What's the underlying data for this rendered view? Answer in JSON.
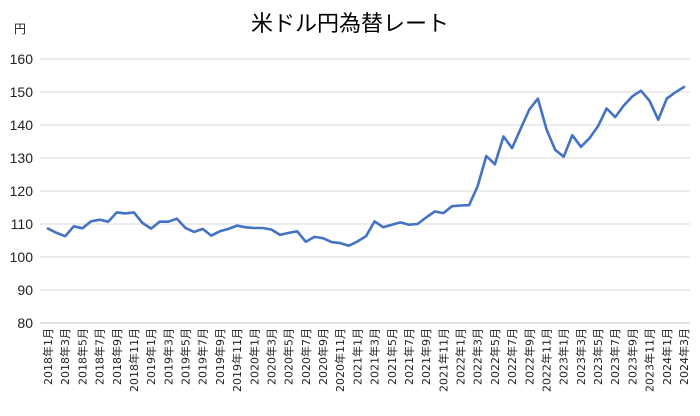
{
  "chart_data": {
    "type": "line",
    "title": "米ドル円為替レート",
    "ylabel": "円",
    "xlabel": "",
    "ylim": [
      80,
      160
    ],
    "yticks": [
      80,
      90,
      100,
      110,
      120,
      130,
      140,
      150,
      160
    ],
    "grid": true,
    "legend": "none",
    "color": "#4472C4",
    "x": [
      "2018年1月",
      "2018年2月",
      "2018年3月",
      "2018年4月",
      "2018年5月",
      "2018年6月",
      "2018年7月",
      "2018年8月",
      "2018年9月",
      "2018年10月",
      "2018年11月",
      "2018年12月",
      "2019年1月",
      "2019年2月",
      "2019年3月",
      "2019年4月",
      "2019年5月",
      "2019年6月",
      "2019年7月",
      "2019年8月",
      "2019年9月",
      "2019年10月",
      "2019年11月",
      "2019年12月",
      "2020年1月",
      "2020年2月",
      "2020年3月",
      "2020年4月",
      "2020年5月",
      "2020年6月",
      "2020年7月",
      "2020年8月",
      "2020年9月",
      "2020年10月",
      "2020年11月",
      "2020年12月",
      "2021年1月",
      "2021年2月",
      "2021年3月",
      "2021年4月",
      "2021年5月",
      "2021年6月",
      "2021年7月",
      "2021年8月",
      "2021年9月",
      "2021年10月",
      "2021年11月",
      "2021年12月",
      "2022年1月",
      "2022年2月",
      "2022年3月",
      "2022年4月",
      "2022年5月",
      "2022年6月",
      "2022年7月",
      "2022年8月",
      "2022年9月",
      "2022年10月",
      "2022年11月",
      "2022年12月",
      "2023年1月",
      "2023年2月",
      "2023年3月",
      "2023年4月",
      "2023年5月",
      "2023年6月",
      "2023年7月",
      "2023年8月",
      "2023年9月",
      "2023年10月",
      "2023年11月",
      "2023年12月",
      "2024年1月",
      "2024年2月",
      "2024年3月"
    ],
    "values": [
      108.6,
      107.3,
      106.3,
      109.3,
      108.7,
      110.8,
      111.3,
      110.7,
      113.5,
      113.2,
      113.5,
      110.3,
      108.6,
      110.7,
      110.7,
      111.6,
      108.8,
      107.6,
      108.5,
      106.5,
      107.8,
      108.5,
      109.5,
      109.0,
      108.8,
      108.8,
      108.3,
      106.7,
      107.3,
      107.8,
      104.6,
      106.1,
      105.7,
      104.5,
      104.2,
      103.4,
      104.7,
      106.3,
      110.8,
      109.0,
      109.8,
      110.5,
      109.8,
      110.0,
      112.0,
      113.8,
      113.3,
      115.4,
      115.6,
      115.7,
      121.5,
      130.6,
      128.1,
      136.5,
      133.0,
      138.9,
      144.7,
      148.0,
      138.7,
      132.5,
      130.4,
      136.9,
      133.4,
      136.0,
      139.7,
      145.0,
      142.4,
      145.9,
      148.7,
      150.4,
      147.3,
      141.6,
      148.0,
      149.9,
      151.5
    ],
    "xtick_labels": [
      "2018年1月",
      "2018年3月",
      "2018年5月",
      "2018年7月",
      "2018年9月",
      "2018年11月",
      "2019年1月",
      "2019年3月",
      "2019年5月",
      "2019年7月",
      "2019年9月",
      "2019年11月",
      "2020年1月",
      "2020年3月",
      "2020年5月",
      "2020年7月",
      "2020年9月",
      "2020年11月",
      "2021年1月",
      "2021年3月",
      "2021年5月",
      "2021年7月",
      "2021年9月",
      "2021年11月",
      "2022年1月",
      "2022年3月",
      "2022年5月",
      "2022年7月",
      "2022年9月",
      "2022年11月",
      "2023年1月",
      "2023年3月",
      "2023年5月",
      "2023年7月",
      "2023年9月",
      "2023年11月",
      "2024年1月",
      "2024年3月"
    ]
  }
}
